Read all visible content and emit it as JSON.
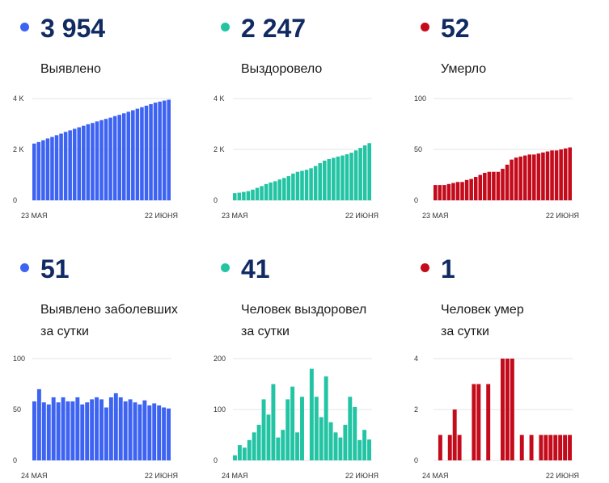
{
  "colors": {
    "blue": "#3d63f2",
    "green": "#23c4a4",
    "red": "#c40b1b",
    "number": "#102a63"
  },
  "panels": [
    {
      "value": "3 954",
      "label": [
        "Выявлено"
      ],
      "color": "blue"
    },
    {
      "value": "2 247",
      "label": [
        "Выздоровело"
      ],
      "color": "green"
    },
    {
      "value": "52",
      "label": [
        "Умерло"
      ],
      "color": "red"
    },
    {
      "value": "51",
      "label": [
        "Выявлено заболевших",
        "за сутки"
      ],
      "color": "blue"
    },
    {
      "value": "41",
      "label": [
        "Человек выздоровел",
        "за сутки"
      ],
      "color": "green"
    },
    {
      "value": "1",
      "label": [
        "Человек умер",
        "за сутки"
      ],
      "color": "red"
    }
  ],
  "chart_data": [
    {
      "type": "bar",
      "series_color": "blue",
      "yticks": [
        0,
        2000,
        4000
      ],
      "ytick_labels": [
        "0",
        "2 K",
        "4 K"
      ],
      "ylim": [
        0,
        4000
      ],
      "x_start": "23 МАЯ",
      "x_end": "22 ИЮНЯ",
      "values": [
        2230,
        2290,
        2360,
        2430,
        2490,
        2560,
        2620,
        2690,
        2750,
        2810,
        2870,
        2930,
        2990,
        3040,
        3100,
        3150,
        3200,
        3250,
        3310,
        3360,
        3420,
        3480,
        3540,
        3600,
        3660,
        3720,
        3780,
        3840,
        3880,
        3920,
        3954
      ]
    },
    {
      "type": "bar",
      "series_color": "green",
      "yticks": [
        0,
        2000,
        4000
      ],
      "ytick_labels": [
        "0",
        "2 K",
        "4 K"
      ],
      "ylim": [
        0,
        4000
      ],
      "x_start": "23 МАЯ",
      "x_end": "22 ИЮНЯ",
      "values": [
        280,
        300,
        330,
        360,
        420,
        490,
        560,
        640,
        700,
        750,
        820,
        880,
        950,
        1050,
        1120,
        1160,
        1200,
        1260,
        1350,
        1460,
        1560,
        1620,
        1670,
        1720,
        1760,
        1810,
        1870,
        1960,
        2060,
        2160,
        2247
      ]
    },
    {
      "type": "bar",
      "series_color": "red",
      "yticks": [
        0,
        50,
        100
      ],
      "ytick_labels": [
        "0",
        "50",
        "100"
      ],
      "ylim": [
        0,
        100
      ],
      "x_start": "23 МАЯ",
      "x_end": "22 ИЮНЯ",
      "values": [
        15,
        15,
        15,
        16,
        17,
        18,
        18,
        20,
        21,
        23,
        25,
        27,
        28,
        28,
        28,
        31,
        35,
        40,
        42,
        43,
        44,
        45,
        45,
        46,
        47,
        48,
        49,
        49,
        50,
        51,
        52
      ]
    },
    {
      "type": "bar",
      "series_color": "blue",
      "yticks": [
        0,
        50,
        100
      ],
      "ytick_labels": [
        "0",
        "50",
        "100"
      ],
      "ylim": [
        0,
        100
      ],
      "x_start": "24 МАЯ",
      "x_end": "22 ИЮНЯ",
      "values": [
        58,
        70,
        57,
        55,
        62,
        57,
        62,
        58,
        58,
        62,
        55,
        57,
        60,
        62,
        60,
        52,
        62,
        66,
        62,
        58,
        60,
        57,
        55,
        59,
        54,
        56,
        54,
        52,
        51
      ]
    },
    {
      "type": "bar",
      "series_color": "green",
      "yticks": [
        0,
        100,
        200
      ],
      "ytick_labels": [
        "0",
        "100",
        "200"
      ],
      "ylim": [
        0,
        200
      ],
      "x_start": "24 МАЯ",
      "x_end": "22 ИЮНЯ",
      "values": [
        10,
        30,
        25,
        40,
        55,
        70,
        120,
        90,
        150,
        45,
        60,
        120,
        145,
        55,
        125,
        0,
        180,
        125,
        85,
        165,
        75,
        55,
        45,
        70,
        125,
        105,
        40,
        60,
        41
      ]
    },
    {
      "type": "bar",
      "series_color": "red",
      "yticks": [
        0,
        2,
        4
      ],
      "ytick_labels": [
        "0",
        "2",
        "4"
      ],
      "ylim": [
        0,
        4
      ],
      "x_start": "24 МАЯ",
      "x_end": "22 ИЮНЯ",
      "values": [
        0,
        1,
        0,
        1,
        2,
        1,
        0,
        0,
        3,
        3,
        0,
        3,
        0,
        0,
        4,
        4,
        4,
        0,
        1,
        0,
        1,
        0,
        1,
        1,
        1,
        1,
        1,
        1,
        1
      ]
    }
  ]
}
